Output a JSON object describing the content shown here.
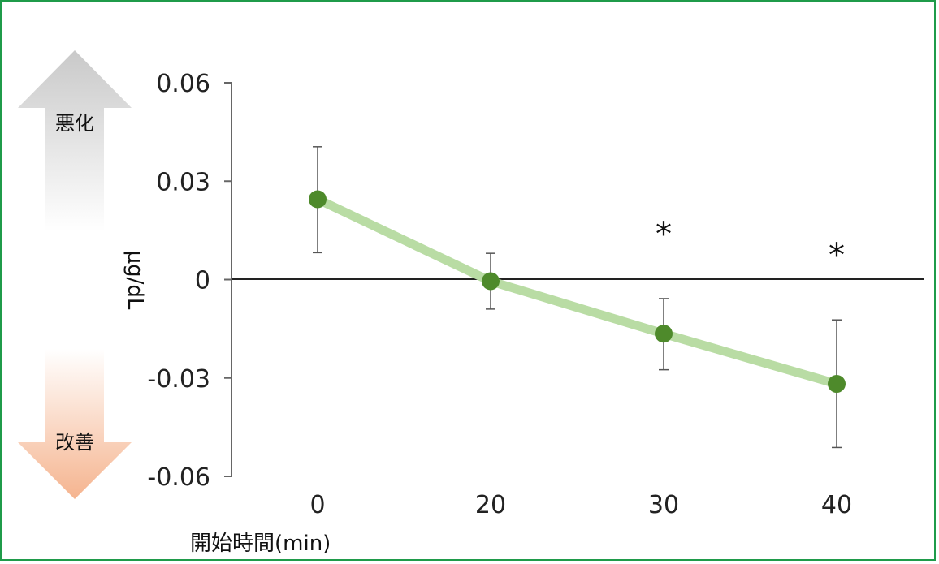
{
  "chart_data": {
    "type": "line",
    "x": [
      0,
      20,
      30,
      40
    ],
    "values": [
      0.0245,
      -0.0005,
      -0.0165,
      -0.0318
    ],
    "error_upper": [
      0.0405,
      0.008,
      -0.0058,
      -0.0123
    ],
    "error_lower": [
      0.0082,
      -0.009,
      -0.0275,
      -0.0512
    ],
    "significance": [
      "",
      "",
      "*",
      "*"
    ],
    "ylabel": "μg/dL",
    "xlabel": "開始時間(min)",
    "ylim": [
      -0.06,
      0.06
    ],
    "yticks": [
      "0.06",
      "0.03",
      "0",
      "-0.03",
      "-0.06"
    ],
    "xticks": [
      "0",
      "20",
      "30",
      "40"
    ],
    "grid": false,
    "colors": {
      "line": "#b9dca4",
      "marker": "#4e8a2b",
      "frame": "#1f9b4a",
      "up_arrow": "#c8c8c8",
      "down_arrow": "#f5b48f"
    }
  },
  "indicators": {
    "up_label": "悪化",
    "down_label": "改善"
  }
}
